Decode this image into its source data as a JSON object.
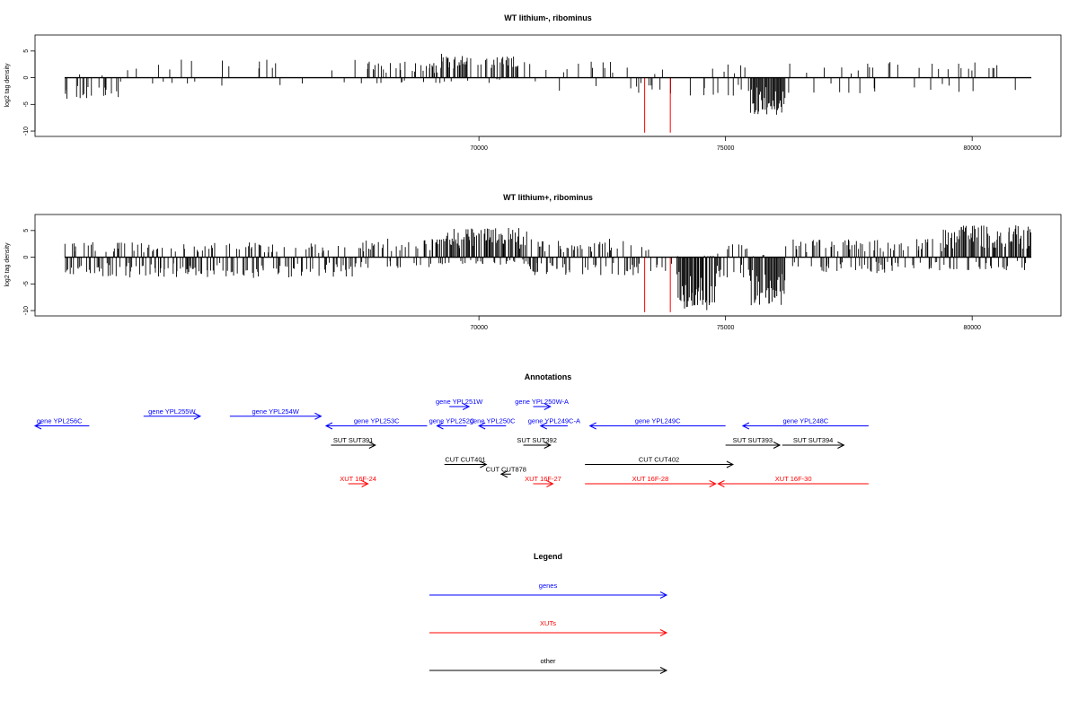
{
  "chart_data": [
    {
      "type": "bar",
      "title": "WT lithium-, ribominus",
      "xlabel": "",
      "ylabel": "log2 tag density",
      "xlim": [
        61000,
        81800
      ],
      "ylim": [
        -11,
        8
      ],
      "x_ticks": [
        70000,
        75000,
        80000
      ],
      "x_tick_labels": [
        "70000",
        "75000",
        "80000"
      ],
      "y_ticks": [
        5,
        0,
        -5,
        -10
      ],
      "y_tick_labels": [
        "5",
        "0",
        "-5",
        "-10"
      ],
      "data_extent": [
        61600,
        81200
      ],
      "colors": {
        "main": "#000000",
        "highlight": "#ff0000"
      },
      "highlight_bars": [
        {
          "x": 73360,
          "y": -10.3
        },
        {
          "x": 73880,
          "y": -10.3
        }
      ],
      "regions": [
        {
          "start": 61600,
          "end": 62700,
          "density": 0.35,
          "pos_max": 0.8,
          "neg_max": 4.0
        },
        {
          "start": 62700,
          "end": 67600,
          "density": 0.07,
          "pos_max": 3.5,
          "neg_max": 1.5
        },
        {
          "start": 67600,
          "end": 69200,
          "density": 0.35,
          "pos_max": 3.0,
          "neg_max": 1.2
        },
        {
          "start": 69200,
          "end": 70800,
          "density": 0.6,
          "pos_max": 4.5,
          "neg_max": 1.0
        },
        {
          "start": 70800,
          "end": 73000,
          "density": 0.15,
          "pos_max": 3.0,
          "neg_max": 2.5
        },
        {
          "start": 73000,
          "end": 74000,
          "density": 0.15,
          "pos_max": 2.0,
          "neg_max": 3.0
        },
        {
          "start": 74000,
          "end": 75500,
          "density": 0.2,
          "pos_max": 2.5,
          "neg_max": 4.5
        },
        {
          "start": 75500,
          "end": 76200,
          "density": 1.3,
          "pos_max": 0.4,
          "neg_max": 7.0
        },
        {
          "start": 76200,
          "end": 81200,
          "density": 0.14,
          "pos_max": 3.0,
          "neg_max": 3.0
        }
      ]
    },
    {
      "type": "bar",
      "title": "WT lithium+, ribominus",
      "xlabel": "",
      "ylabel": "log2 tag density",
      "xlim": [
        61000,
        81800
      ],
      "ylim": [
        -11,
        8
      ],
      "x_ticks": [
        70000,
        75000,
        80000
      ],
      "x_tick_labels": [
        "70000",
        "75000",
        "80000"
      ],
      "y_ticks": [
        5,
        0,
        -5,
        -10
      ],
      "y_tick_labels": [
        "5",
        "0",
        "-5",
        "-10"
      ],
      "data_extent": [
        61600,
        81200
      ],
      "colors": {
        "main": "#000000",
        "highlight": "#ff0000"
      },
      "highlight_bars": [
        {
          "x": 73360,
          "y": -10.3
        },
        {
          "x": 73880,
          "y": -10.3
        }
      ],
      "regions": [
        {
          "start": 61600,
          "end": 67600,
          "density": 0.6,
          "pos_max": 2.8,
          "neg_max": 4.0
        },
        {
          "start": 67600,
          "end": 69200,
          "density": 0.6,
          "pos_max": 3.5,
          "neg_max": 2.0
        },
        {
          "start": 69200,
          "end": 71000,
          "density": 1.3,
          "pos_max": 5.5,
          "neg_max": 1.5
        },
        {
          "start": 71000,
          "end": 73300,
          "density": 0.6,
          "pos_max": 3.5,
          "neg_max": 3.5
        },
        {
          "start": 73300,
          "end": 74000,
          "density": 0.3,
          "pos_max": 1.5,
          "neg_max": 3.0
        },
        {
          "start": 74000,
          "end": 74800,
          "density": 1.3,
          "pos_max": 0.5,
          "neg_max": 10.0
        },
        {
          "start": 74800,
          "end": 75500,
          "density": 0.5,
          "pos_max": 2.5,
          "neg_max": 4.0
        },
        {
          "start": 75500,
          "end": 76200,
          "density": 1.3,
          "pos_max": 0.5,
          "neg_max": 9.0
        },
        {
          "start": 76200,
          "end": 79400,
          "density": 0.6,
          "pos_max": 3.5,
          "neg_max": 3.0
        },
        {
          "start": 79400,
          "end": 81200,
          "density": 1.1,
          "pos_max": 6.0,
          "neg_max": 2.5
        }
      ]
    },
    {
      "type": "annotation_track",
      "title": "Annotations",
      "xlim": [
        61000,
        81800
      ],
      "colors": {
        "gene": "#0000ff",
        "xut": "#ff0000",
        "other": "#000000"
      },
      "features": [
        {
          "label": "gene YPL256C",
          "kind": "gene",
          "start": 61000,
          "end": 62100,
          "strand": "-",
          "row": 1,
          "label_shift": -3
        },
        {
          "label": "gene YPL255W",
          "kind": "gene",
          "start": 63200,
          "end": 64350,
          "strand": "+",
          "row": 0.5
        },
        {
          "label": "gene YPL254W",
          "kind": "gene",
          "start": 64950,
          "end": 66800,
          "strand": "+",
          "row": 0.5
        },
        {
          "label": "gene YPL253C",
          "kind": "gene",
          "start": 66900,
          "end": 68950,
          "strand": "-",
          "row": 1
        },
        {
          "label": "gene YPL251W",
          "kind": "gene",
          "start": 69400,
          "end": 69800,
          "strand": "+",
          "row": 0
        },
        {
          "label": "gene YPL252C",
          "kind": "gene",
          "start": 69150,
          "end": 69750,
          "strand": "-",
          "row": 1
        },
        {
          "label": "gene YPL250C",
          "kind": "gene",
          "start": 70000,
          "end": 70550,
          "strand": "-",
          "row": 1
        },
        {
          "label": "gene YPL250W-A",
          "kind": "gene",
          "start": 71100,
          "end": 71450,
          "strand": "+",
          "row": 0
        },
        {
          "label": "gene YPL249C-A",
          "kind": "gene",
          "start": 71250,
          "end": 71800,
          "strand": "-",
          "row": 1
        },
        {
          "label": "gene YPL249C",
          "kind": "gene",
          "start": 72250,
          "end": 75000,
          "strand": "-",
          "row": 1
        },
        {
          "label": "gene YPL248C",
          "kind": "gene",
          "start": 75350,
          "end": 77900,
          "strand": "-",
          "row": 1
        },
        {
          "label": "SUT SUT391",
          "kind": "other",
          "start": 67000,
          "end": 67900,
          "strand": "+",
          "row": 2
        },
        {
          "label": "SUT SUT392",
          "kind": "other",
          "start": 70900,
          "end": 71450,
          "strand": "+",
          "row": 2
        },
        {
          "label": "SUT SUT393",
          "kind": "other",
          "start": 75000,
          "end": 76100,
          "strand": "+",
          "row": 2
        },
        {
          "label": "SUT SUT394",
          "kind": "other",
          "start": 76150,
          "end": 77400,
          "strand": "+",
          "row": 2
        },
        {
          "label": "CUT CUT401",
          "kind": "other",
          "start": 69300,
          "end": 70150,
          "strand": "+",
          "row": 3
        },
        {
          "label": "CUT CUT878",
          "kind": "other",
          "start": 70450,
          "end": 70650,
          "strand": "-",
          "row": 3.5
        },
        {
          "label": "CUT CUT402",
          "kind": "other",
          "start": 72150,
          "end": 75150,
          "strand": "+",
          "row": 3
        },
        {
          "label": "XUT 16F-24",
          "kind": "xut",
          "start": 67350,
          "end": 67750,
          "strand": "+",
          "row": 4
        },
        {
          "label": "XUT 16F-27",
          "kind": "xut",
          "start": 71100,
          "end": 71500,
          "strand": "+",
          "row": 4
        },
        {
          "label": "XUT 16F-28",
          "kind": "xut",
          "start": 72150,
          "end": 74800,
          "strand": "+",
          "row": 4
        },
        {
          "label": "XUT 16F-30",
          "kind": "xut",
          "start": 74850,
          "end": 77900,
          "strand": "-",
          "row": 4
        }
      ]
    },
    {
      "type": "legend",
      "title": "Legend",
      "entries": [
        {
          "label": "genes",
          "color": "#0000ff"
        },
        {
          "label": "XUTs",
          "color": "#ff0000"
        },
        {
          "label": "other",
          "color": "#000000"
        }
      ]
    }
  ]
}
